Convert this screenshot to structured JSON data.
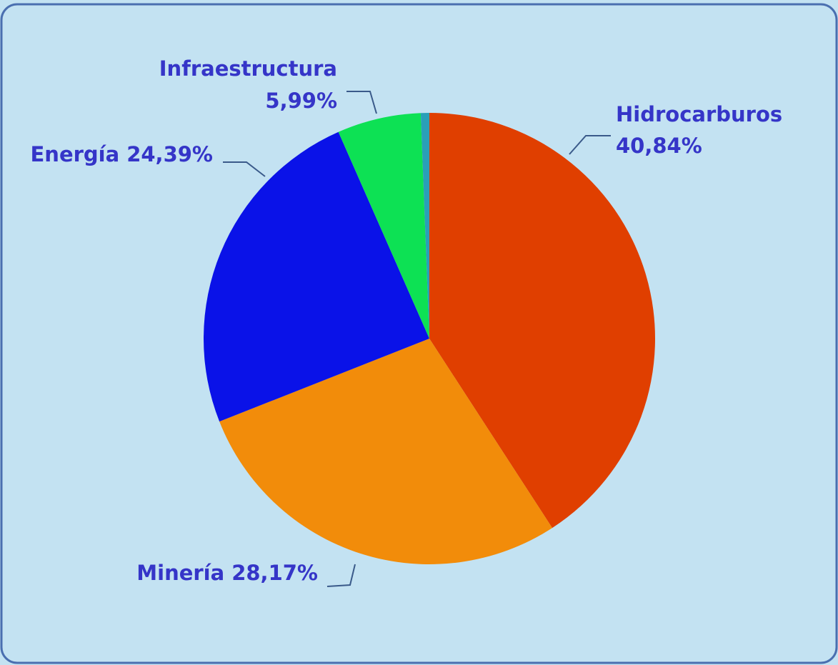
{
  "chart_data": {
    "type": "pie",
    "categories": [
      "Hidrocarburos",
      "Minería",
      "Energía",
      "Infraestructura",
      null
    ],
    "values": [
      40.84,
      28.17,
      24.39,
      5.99,
      0.61
    ],
    "value_labels": [
      "40,84%",
      "28,17%",
      "24,39%",
      "5,99%",
      null
    ],
    "colors": [
      "#e03f00",
      "#f28c0a",
      "#0a12e8",
      "#0de154",
      "#2a9fb8"
    ]
  }
}
